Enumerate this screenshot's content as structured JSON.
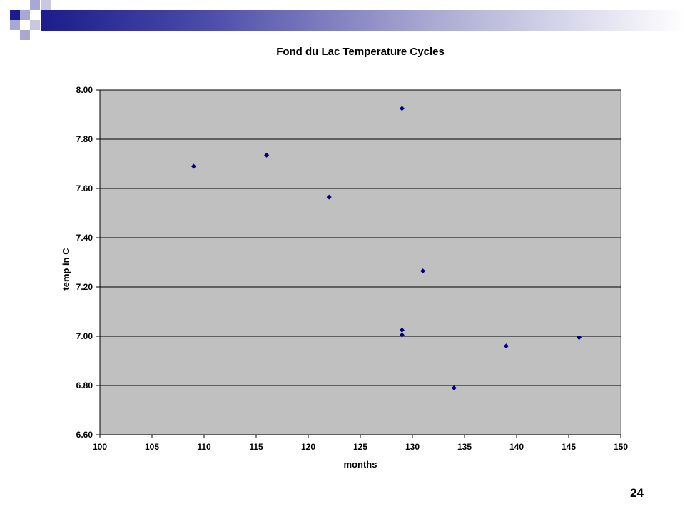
{
  "slide": {
    "page_number": "24"
  },
  "colors": {
    "plot_background": "#c0c0c0",
    "marker": "#000080",
    "header_bar": "#1c1c8c",
    "accent_square": "#a8a8d2"
  },
  "chart_data": {
    "type": "scatter",
    "title": "Fond du Lac Temperature Cycles",
    "xlabel": "months",
    "ylabel": "temp in C",
    "xlim": [
      100,
      150
    ],
    "ylim": [
      6.6,
      8.0
    ],
    "x_ticks": [
      "100",
      "105",
      "110",
      "115",
      "120",
      "125",
      "130",
      "135",
      "140",
      "145",
      "150"
    ],
    "y_ticks": [
      "6.60",
      "6.80",
      "7.00",
      "7.20",
      "7.40",
      "7.60",
      "7.80",
      "8.00"
    ],
    "grid": "horizontal",
    "legend": "none",
    "marker": "diamond",
    "points": [
      {
        "x": 109,
        "y": 7.69
      },
      {
        "x": 116,
        "y": 7.735
      },
      {
        "x": 122,
        "y": 7.565
      },
      {
        "x": 129,
        "y": 7.925
      },
      {
        "x": 129,
        "y": 7.025
      },
      {
        "x": 129,
        "y": 7.005
      },
      {
        "x": 131,
        "y": 7.265
      },
      {
        "x": 134,
        "y": 6.79
      },
      {
        "x": 139,
        "y": 6.96
      },
      {
        "x": 146,
        "y": 6.995
      }
    ]
  }
}
